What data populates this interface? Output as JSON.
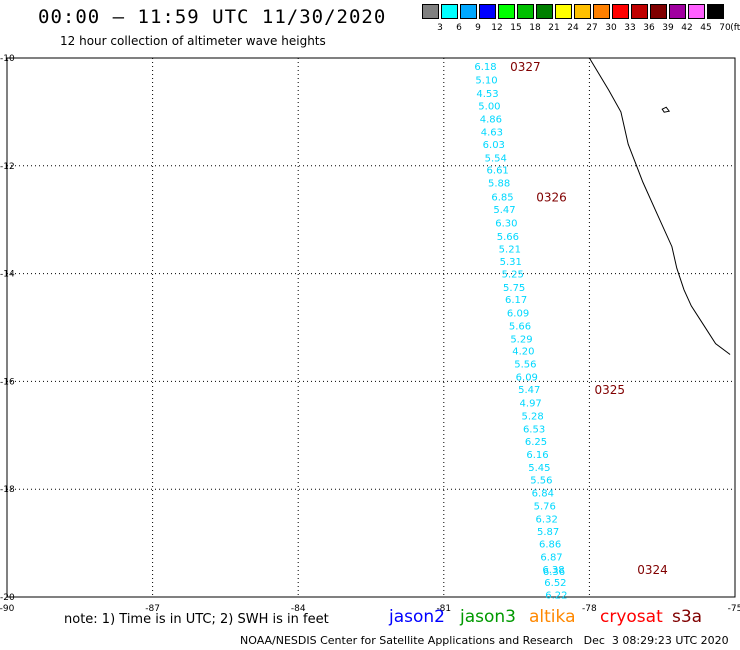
{
  "header": {
    "title": "00:00 – 11:59 UTC 11/30/2020",
    "subtitle": "12 hour collection of altimeter wave heights"
  },
  "legend": {
    "unit": "(ft)",
    "items": [
      {
        "label": "3",
        "color": "#808080"
      },
      {
        "label": "6",
        "color": "#00ffff"
      },
      {
        "label": "9",
        "color": "#00a8ff"
      },
      {
        "label": "12",
        "color": "#0000ff"
      },
      {
        "label": "15",
        "color": "#00ff00"
      },
      {
        "label": "18",
        "color": "#00c000"
      },
      {
        "label": "21",
        "color": "#008000"
      },
      {
        "label": "24",
        "color": "#ffff00"
      },
      {
        "label": "27",
        "color": "#ffc000"
      },
      {
        "label": "30",
        "color": "#ff8000"
      },
      {
        "label": "33",
        "color": "#ff0000"
      },
      {
        "label": "36",
        "color": "#c00000"
      },
      {
        "label": "39",
        "color": "#800000"
      },
      {
        "label": "42",
        "color": "#a000a0"
      },
      {
        "label": "45",
        "color": "#ff60ff"
      },
      {
        "label": "70",
        "color": "#000000"
      }
    ]
  },
  "map": {
    "lon_range": [
      -90,
      -75
    ],
    "lat_range": [
      -20,
      -10
    ],
    "lon_labels": [
      "-90",
      "-87",
      "-84",
      "-81",
      "-78",
      "-75"
    ],
    "lat_labels": [
      "-10",
      "-12",
      "-14",
      "-16",
      "-18",
      "-20"
    ],
    "grid": "dotted",
    "track_color": "#00d8ff",
    "time_color": "#800000",
    "wave_heights": [
      {
        "lon": -80.14,
        "lat": -10.15,
        "text": "6.18"
      },
      {
        "lon": -80.12,
        "lat": -10.4,
        "text": "5.10"
      },
      {
        "lon": -80.1,
        "lat": -10.65,
        "text": "4.53"
      },
      {
        "lon": -80.06,
        "lat": -10.88,
        "text": "5.00"
      },
      {
        "lon": -80.03,
        "lat": -11.12,
        "text": "4.86"
      },
      {
        "lon": -80.01,
        "lat": -11.36,
        "text": "4.63"
      },
      {
        "lon": -79.97,
        "lat": -11.6,
        "text": "6.03"
      },
      {
        "lon": -79.93,
        "lat": -11.85,
        "text": "5.54"
      },
      {
        "lon": -79.89,
        "lat": -12.07,
        "text": "6.61"
      },
      {
        "lon": -79.86,
        "lat": -12.31,
        "text": "5.88"
      },
      {
        "lon": -79.79,
        "lat": -12.57,
        "text": "6.85"
      },
      {
        "lon": -79.75,
        "lat": -12.8,
        "text": "5.47"
      },
      {
        "lon": -79.71,
        "lat": -13.05,
        "text": "6.30"
      },
      {
        "lon": -79.68,
        "lat": -13.3,
        "text": "5.66"
      },
      {
        "lon": -79.64,
        "lat": -13.53,
        "text": "5.21"
      },
      {
        "lon": -79.62,
        "lat": -13.77,
        "text": "5.31"
      },
      {
        "lon": -79.58,
        "lat": -14.0,
        "text": "5.25"
      },
      {
        "lon": -79.55,
        "lat": -14.25,
        "text": "5.75"
      },
      {
        "lon": -79.51,
        "lat": -14.47,
        "text": "6.17"
      },
      {
        "lon": -79.47,
        "lat": -14.72,
        "text": "6.09"
      },
      {
        "lon": -79.43,
        "lat": -14.96,
        "text": "5.66"
      },
      {
        "lon": -79.4,
        "lat": -15.2,
        "text": "5.29"
      },
      {
        "lon": -79.36,
        "lat": -15.43,
        "text": "4.20"
      },
      {
        "lon": -79.32,
        "lat": -15.67,
        "text": "5.56"
      },
      {
        "lon": -79.29,
        "lat": -15.91,
        "text": "6.09"
      },
      {
        "lon": -79.24,
        "lat": -16.14,
        "text": "5.47"
      },
      {
        "lon": -79.21,
        "lat": -16.39,
        "text": "4.97"
      },
      {
        "lon": -79.17,
        "lat": -16.63,
        "text": "5.28"
      },
      {
        "lon": -79.14,
        "lat": -16.87,
        "text": "6.53"
      },
      {
        "lon": -79.1,
        "lat": -17.11,
        "text": "6.25"
      },
      {
        "lon": -79.07,
        "lat": -17.35,
        "text": "6.16"
      },
      {
        "lon": -79.03,
        "lat": -17.59,
        "text": "5.45"
      },
      {
        "lon": -78.99,
        "lat": -17.82,
        "text": "5.56"
      },
      {
        "lon": -78.96,
        "lat": -18.06,
        "text": "6.84"
      },
      {
        "lon": -78.92,
        "lat": -18.3,
        "text": "5.76"
      },
      {
        "lon": -78.88,
        "lat": -18.54,
        "text": "6.32"
      },
      {
        "lon": -78.85,
        "lat": -18.78,
        "text": "5.87"
      },
      {
        "lon": -78.81,
        "lat": -19.01,
        "text": "6.86"
      },
      {
        "lon": -78.78,
        "lat": -19.25,
        "text": "6.87"
      },
      {
        "lon": -78.74,
        "lat": -19.48,
        "text": "6.38"
      },
      {
        "lon": -78.73,
        "lat": -19.52,
        "text": "6.36"
      },
      {
        "lon": -78.7,
        "lat": -19.72,
        "text": "6.52"
      },
      {
        "lon": -78.68,
        "lat": -19.95,
        "text": "6.22"
      }
    ],
    "pass_times": [
      {
        "lon": -79.32,
        "lat": -10.15,
        "text": "0327"
      },
      {
        "lon": -78.78,
        "lat": -12.57,
        "text": "0326"
      },
      {
        "lon": -77.58,
        "lat": -16.14,
        "text": "0325"
      },
      {
        "lon": -76.7,
        "lat": -19.48,
        "text": "0324"
      }
    ]
  },
  "footer_note": "note:  1) Time is in UTC;  2) SWH is in feet",
  "satellites": [
    {
      "name": "jason2",
      "color": "#0000ff"
    },
    {
      "name": "jason3",
      "color": "#009900"
    },
    {
      "name": "altika",
      "color": "#ff8800"
    },
    {
      "name": "cryosat",
      "color": "#ff0000"
    },
    {
      "name": "s3a",
      "color": "#800000"
    }
  ],
  "credits": "NOAA/NESDIS Center for Satellite Applications and Research",
  "timestamp": "Dec  3 08:29:23 UTC 2020"
}
